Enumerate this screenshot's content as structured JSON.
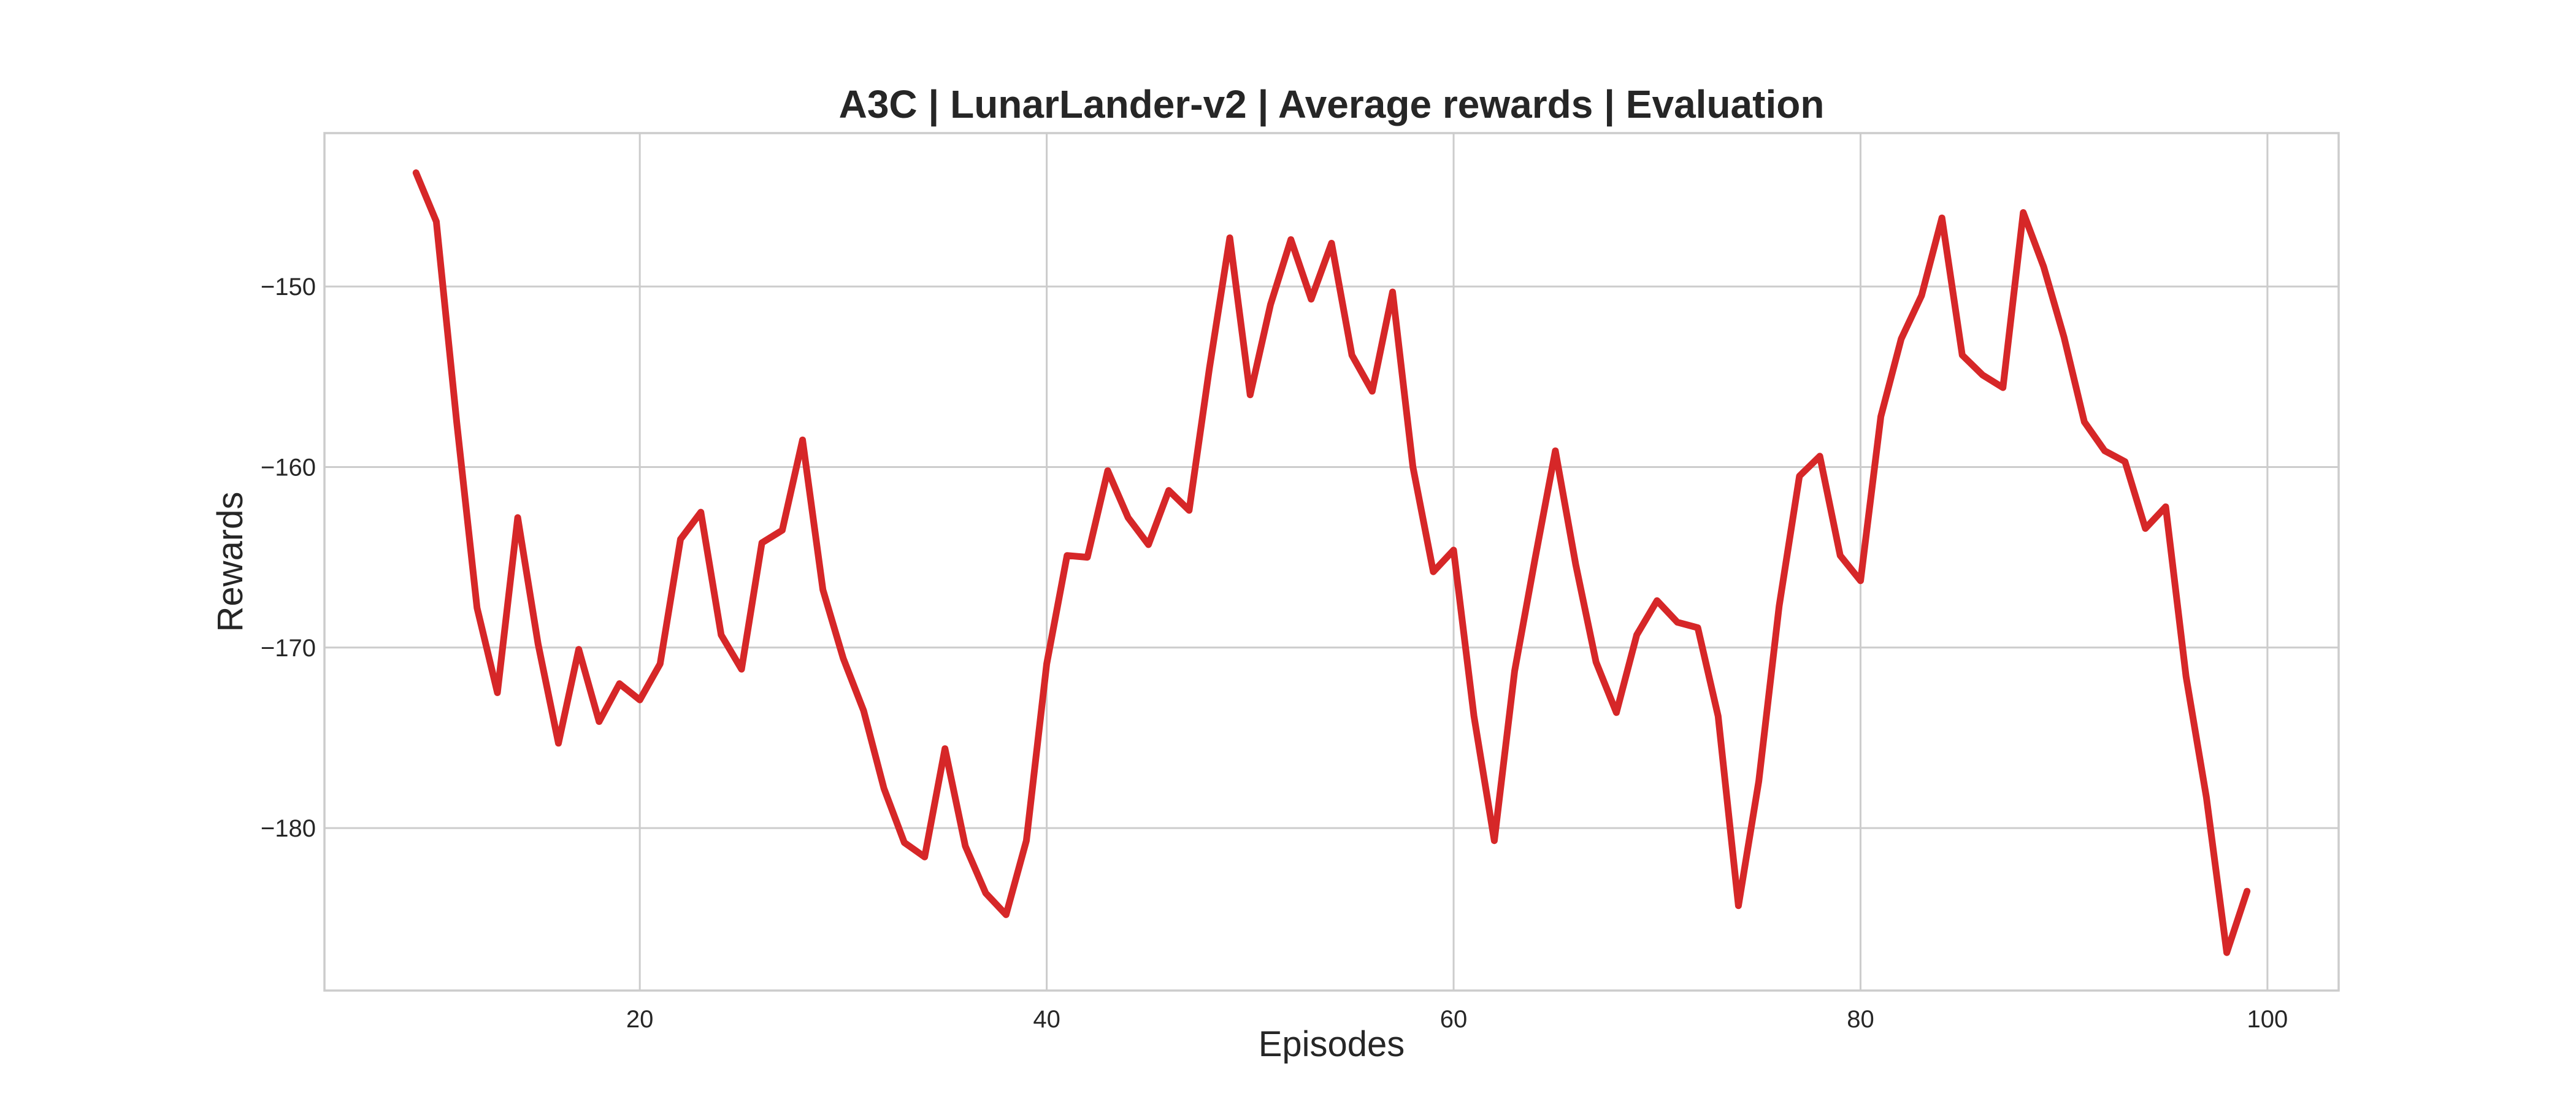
{
  "chart_data": {
    "type": "line",
    "title": "A3C | LunarLander-v2 | Average rewards | Evaluation",
    "xlabel": "Episodes",
    "ylabel": "Rewards",
    "xlim": [
      4.5,
      103.5
    ],
    "ylim": [
      -189,
      -141.5
    ],
    "xticks": [
      20,
      40,
      60,
      80,
      100
    ],
    "yticks": [
      -180,
      -170,
      -160,
      -150
    ],
    "xtick_labels": [
      "20",
      "40",
      "60",
      "80",
      "100"
    ],
    "ytick_labels": [
      "−180",
      "−170",
      "−160",
      "−150"
    ],
    "grid": true,
    "legend": "none",
    "series": [
      {
        "color": "#d62728",
        "x": [
          9,
          10,
          11,
          12,
          13,
          14,
          15,
          16,
          17,
          18,
          19,
          20,
          21,
          22,
          23,
          24,
          25,
          26,
          27,
          28,
          29,
          30,
          31,
          32,
          33,
          34,
          35,
          36,
          37,
          38,
          39,
          40,
          41,
          42,
          43,
          44,
          45,
          46,
          47,
          48,
          49,
          50,
          51,
          52,
          53,
          54,
          55,
          56,
          57,
          58,
          59,
          60,
          61,
          62,
          63,
          64,
          65,
          66,
          67,
          68,
          69,
          70,
          71,
          72,
          73,
          74,
          75,
          76,
          77,
          78,
          79,
          80,
          81,
          82,
          83,
          84,
          85,
          86,
          87,
          88,
          89,
          90,
          91,
          92,
          93,
          94,
          95,
          96,
          97,
          98,
          99
        ],
        "y": [
          -143.7,
          -146.4,
          -157.5,
          -167.8,
          -172.5,
          -162.8,
          -169.8,
          -175.3,
          -170.1,
          -174.1,
          -172.0,
          -172.9,
          -170.9,
          -164.0,
          -162.5,
          -169.3,
          -171.2,
          -164.2,
          -163.5,
          -158.5,
          -166.8,
          -170.6,
          -173.5,
          -177.8,
          -180.8,
          -181.6,
          -175.6,
          -181.0,
          -183.6,
          -184.8,
          -180.7,
          -170.9,
          -164.9,
          -165.0,
          -160.2,
          -162.8,
          -164.3,
          -161.3,
          -162.4,
          -154.5,
          -147.3,
          -156.0,
          -151.0,
          -147.4,
          -150.7,
          -147.6,
          -153.8,
          -155.8,
          -150.3,
          -160.0,
          -165.8,
          -164.6,
          -173.8,
          -180.7,
          -171.3,
          -165.1,
          -159.1,
          -165.4,
          -170.8,
          -173.6,
          -169.3,
          -167.4,
          -168.6,
          -168.9,
          -173.8,
          -184.3,
          -177.4,
          -167.7,
          -160.5,
          -159.4,
          -164.9,
          -166.3,
          -157.2,
          -152.9,
          -150.5,
          -146.2,
          -153.8,
          -154.9,
          -155.6,
          -145.9,
          -148.9,
          -152.8,
          -157.5,
          -159.1,
          -159.7,
          -163.4,
          -162.2,
          -171.6,
          -178.3,
          -186.9,
          -183.5
        ]
      }
    ]
  }
}
